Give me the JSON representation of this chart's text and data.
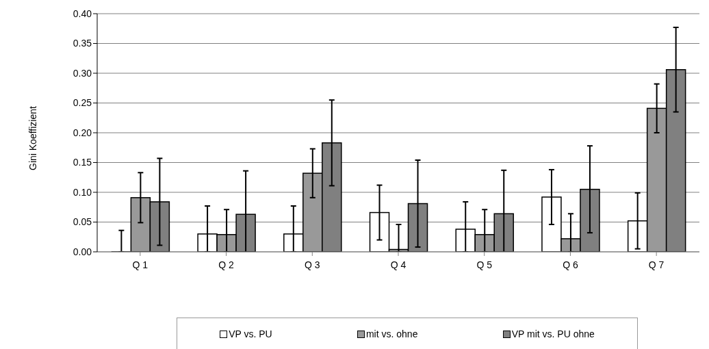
{
  "chart_data": {
    "type": "bar",
    "ylabel": "Gini Koeffizient",
    "categories": [
      "Q 1",
      "Q 2",
      "Q 3",
      "Q 4",
      "Q 5",
      "Q 6",
      "Q 7"
    ],
    "series": [
      {
        "name": "VP vs. PU",
        "color": "#ffffff",
        "values": [
          0,
          0.03,
          0.03,
          0.066,
          0.038,
          0.092,
          0.052
        ],
        "errors": [
          [
            0,
            0.036
          ],
          [
            0,
            0.077
          ],
          [
            0,
            0.077
          ],
          0.046,
          [
            0,
            0.084
          ],
          0.046,
          0.047
        ]
      },
      {
        "name": "mit vs. ohne",
        "color": "#999999",
        "values": [
          0.091,
          0.029,
          0.132,
          0.004,
          0.029,
          0.022,
          0.241
        ],
        "errors": [
          0.042,
          [
            0,
            0.071
          ],
          0.041,
          [
            0,
            0.046
          ],
          [
            0,
            0.071
          ],
          [
            0,
            0.064
          ],
          0.041
        ]
      },
      {
        "name": "VP mit vs. PU ohne",
        "color": "#808080",
        "values": [
          0.084,
          0.063,
          0.183,
          0.081,
          0.064,
          0.105,
          0.306
        ],
        "errors": [
          0.073,
          0.073,
          0.072,
          0.073,
          0.073,
          0.073,
          0.071
        ]
      }
    ],
    "ylim": [
      0,
      0.4
    ],
    "yticks": [
      {
        "value": 0,
        "label": "0.00"
      },
      {
        "value": 0.05,
        "label": "0.05"
      },
      {
        "value": 0.1,
        "label": "0.10"
      },
      {
        "value": 0.15,
        "label": "0.15"
      },
      {
        "value": 0.2,
        "label": "0.20"
      },
      {
        "value": 0.25,
        "label": "0.25"
      },
      {
        "value": 0.3,
        "label": "0.30"
      },
      {
        "value": 0.35,
        "label": "0.35"
      },
      {
        "value": 0.4,
        "label": "0.40"
      }
    ],
    "grid": "y",
    "legend": "bottom"
  }
}
